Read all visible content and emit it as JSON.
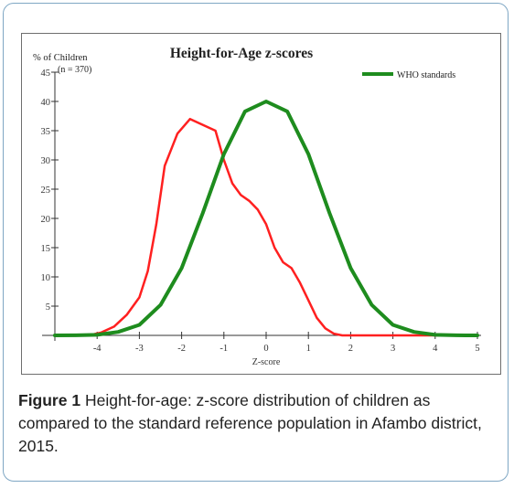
{
  "caption": {
    "label": "Figure 1",
    "text": "Height-for-age: z-score distribution of children as compared to the standard reference population in Afambo district, 2015."
  },
  "chart_data": {
    "type": "line",
    "title": "Height-for-Age z-scores",
    "ylabel": "% of Children",
    "ylabel_sub": "(n = 370)",
    "xlabel": "Z-score",
    "xlim": [
      -5,
      5
    ],
    "ylim": [
      0,
      45
    ],
    "xticks": [
      -4,
      -3,
      -2,
      -1,
      0,
      1,
      2,
      3,
      4,
      5
    ],
    "yticks": [
      5,
      10,
      15,
      20,
      25,
      30,
      35,
      40,
      45
    ],
    "legend_position": "top-right",
    "series": [
      {
        "name": "",
        "color": "#ff2020",
        "x": [
          -5,
          -4.2,
          -3.9,
          -3.6,
          -3.3,
          -3.0,
          -2.8,
          -2.6,
          -2.4,
          -2.1,
          -1.8,
          -1.5,
          -1.2,
          -1.0,
          -0.8,
          -0.6,
          -0.4,
          -0.2,
          0.0,
          0.2,
          0.4,
          0.6,
          0.8,
          1.0,
          1.2,
          1.4,
          1.6,
          1.8,
          2.0,
          2.5,
          5
        ],
        "y": [
          0,
          0,
          0.5,
          1.5,
          3.5,
          6.5,
          11,
          19,
          29,
          34.5,
          37,
          36,
          35,
          30,
          26,
          24,
          23,
          21.5,
          19,
          15,
          12.5,
          11.5,
          9,
          6,
          3,
          1.2,
          0.3,
          0,
          0,
          0,
          0
        ]
      },
      {
        "name": "WHO standards",
        "color": "#1e8c1e",
        "x": [
          -5,
          -4.5,
          -4,
          -3.5,
          -3,
          -2.5,
          -2,
          -1.5,
          -1,
          -0.5,
          0,
          0.5,
          1,
          1.5,
          2,
          2.5,
          3,
          3.5,
          4,
          4.5,
          5
        ],
        "y": [
          0,
          0.02,
          0.1,
          0.6,
          1.8,
          5.2,
          11.5,
          20.9,
          31,
          38.3,
          40,
          38.3,
          31,
          20.9,
          11.5,
          5.2,
          1.8,
          0.6,
          0.1,
          0.02,
          0
        ]
      }
    ]
  }
}
